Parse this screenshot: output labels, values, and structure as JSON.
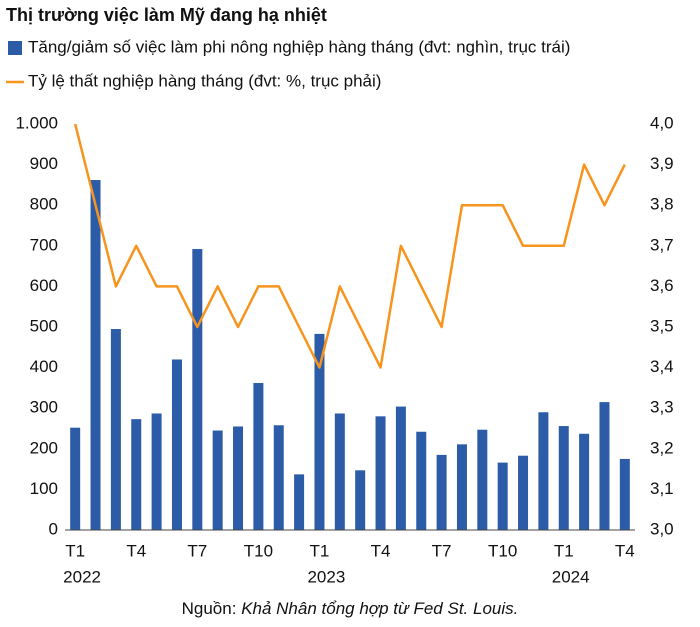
{
  "chart_data": {
    "type": "bar_line",
    "title": "Thị trường việc làm Mỹ đang hạ nhiệt",
    "categories": [
      "T1",
      null,
      null,
      "T4",
      null,
      null,
      "T7",
      null,
      null,
      "T10",
      null,
      null,
      "T1",
      null,
      null,
      "T4",
      null,
      null,
      "T7",
      null,
      null,
      "T10",
      null,
      null,
      "T1",
      null,
      null,
      "T4"
    ],
    "year_labels": [
      {
        "index": 0,
        "label": "2022"
      },
      {
        "index": 12,
        "label": "2023"
      },
      {
        "index": 24,
        "label": "2024"
      }
    ],
    "series": [
      {
        "name": "Tăng/giảm số việc làm phi nông nghiệp hàng tháng (đvt: nghìn, trục trái)",
        "type": "bar",
        "color": "#2c5ca8",
        "values": [
          252,
          862,
          495,
          273,
          287,
          420,
          692,
          245,
          255,
          362,
          258,
          137,
          483,
          287,
          147,
          280,
          304,
          242,
          185,
          211,
          247,
          166,
          183,
          290,
          256,
          237,
          315,
          175
        ]
      },
      {
        "name": "Tỷ lệ thất nghiệp hàng tháng (đvt: %, trục phải)",
        "type": "line",
        "axis": "y2",
        "color": "#f7941d",
        "values": [
          4.0,
          3.8,
          3.6,
          3.7,
          3.6,
          3.6,
          3.5,
          3.6,
          3.5,
          3.6,
          3.6,
          3.5,
          3.4,
          3.6,
          3.5,
          3.4,
          3.7,
          3.6,
          3.5,
          3.8,
          3.8,
          3.8,
          3.7,
          3.7,
          3.7,
          3.9,
          3.8,
          3.9
        ]
      }
    ],
    "ylim": [
      0,
      1000
    ],
    "yticks": [
      0,
      100,
      200,
      300,
      400,
      500,
      600,
      700,
      800,
      900,
      {
        "value": 1000,
        "label": "1.000"
      }
    ],
    "y2lim": [
      3.0,
      4.0
    ],
    "y2ticks": [
      {
        "value": 3.0,
        "label": "3,0"
      },
      {
        "value": 3.1,
        "label": "3,1"
      },
      {
        "value": 3.2,
        "label": "3,2"
      },
      {
        "value": 3.3,
        "label": "3,3"
      },
      {
        "value": 3.4,
        "label": "3,4"
      },
      {
        "value": 3.5,
        "label": "3,5"
      },
      {
        "value": 3.6,
        "label": "3,6"
      },
      {
        "value": 3.7,
        "label": "3,7"
      },
      {
        "value": 3.8,
        "label": "3,8"
      },
      {
        "value": 3.9,
        "label": "3,9"
      },
      {
        "value": 4.0,
        "label": "4,0"
      }
    ],
    "grid": false,
    "source": "Nguồn:",
    "source_detail": "Khả Nhân tổng hợp từ Fed St. Louis."
  }
}
